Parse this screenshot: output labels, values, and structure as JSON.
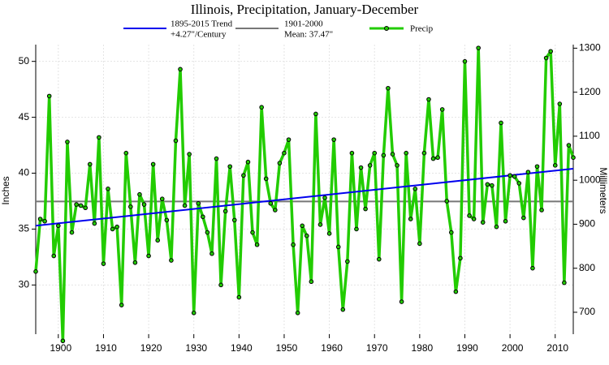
{
  "chart_data": {
    "type": "line",
    "title": "Illinois, Precipitation, January-December",
    "ylabel": "Inches",
    "y2label": "Millimeters",
    "x": [
      1895,
      1896,
      1897,
      1898,
      1899,
      1900,
      1901,
      1902,
      1903,
      1904,
      1905,
      1906,
      1907,
      1908,
      1909,
      1910,
      1911,
      1912,
      1913,
      1914,
      1915,
      1916,
      1917,
      1918,
      1919,
      1920,
      1921,
      1922,
      1923,
      1924,
      1925,
      1926,
      1927,
      1928,
      1929,
      1930,
      1931,
      1932,
      1933,
      1934,
      1935,
      1936,
      1937,
      1938,
      1939,
      1940,
      1941,
      1942,
      1943,
      1944,
      1945,
      1946,
      1947,
      1948,
      1949,
      1950,
      1951,
      1952,
      1953,
      1954,
      1955,
      1956,
      1957,
      1958,
      1959,
      1960,
      1961,
      1962,
      1963,
      1964,
      1965,
      1966,
      1967,
      1968,
      1969,
      1970,
      1971,
      1972,
      1973,
      1974,
      1975,
      1976,
      1977,
      1978,
      1979,
      1980,
      1981,
      1982,
      1983,
      1984,
      1985,
      1986,
      1987,
      1988,
      1989,
      1990,
      1991,
      1992,
      1993,
      1994,
      1995,
      1996,
      1997,
      1998,
      1999,
      2000,
      2001,
      2002,
      2003,
      2004,
      2005,
      2006,
      2007,
      2008,
      2009,
      2010,
      2011,
      2012,
      2013,
      2014
    ],
    "series": [
      {
        "name": "Precip",
        "color": "#22cc00",
        "values": [
          31.2,
          35.9,
          35.7,
          46.9,
          32.6,
          35.3,
          25.0,
          42.8,
          34.7,
          37.2,
          37.1,
          36.9,
          40.8,
          35.5,
          43.2,
          31.9,
          38.6,
          35.0,
          35.2,
          28.2,
          41.8,
          37.0,
          32.0,
          38.1,
          37.2,
          32.6,
          40.8,
          34.0,
          37.7,
          35.8,
          32.2,
          42.9,
          49.3,
          37.1,
          41.7,
          27.5,
          37.3,
          36.1,
          34.7,
          32.8,
          41.3,
          30.0,
          36.6,
          40.6,
          35.8,
          28.9,
          39.8,
          41.0,
          34.7,
          33.6,
          45.9,
          39.5,
          37.3,
          36.7,
          40.9,
          41.8,
          43.0,
          33.6,
          27.5,
          35.3,
          34.4,
          30.3,
          45.3,
          35.4,
          37.8,
          34.6,
          43.0,
          33.4,
          27.8,
          32.1,
          41.8,
          35.0,
          40.5,
          36.8,
          40.7,
          41.8,
          32.3,
          41.6,
          47.6,
          41.7,
          40.7,
          28.5,
          41.8,
          35.9,
          38.6,
          33.7,
          41.8,
          46.6,
          41.3,
          41.4,
          45.7,
          37.5,
          34.7,
          29.4,
          32.4,
          50.0,
          36.2,
          35.9,
          51.2,
          35.6,
          39.0,
          38.9,
          35.2,
          44.5,
          35.7,
          39.8,
          39.7,
          39.1,
          36.0,
          40.1,
          31.5,
          40.6,
          36.7,
          50.3,
          50.9,
          40.7,
          46.2,
          30.2,
          42.5,
          41.4
        ]
      }
    ],
    "trend": {
      "name": "1895-2015 Trend",
      "label": "+4.27\"/Century",
      "color": "#0000ee",
      "x": [
        1895,
        2014
      ],
      "values": [
        35.3,
        40.4
      ]
    },
    "mean": {
      "name": "1901-2000",
      "label": "Mean: 37.47\"",
      "color": "#777777",
      "value": 37.47
    },
    "xlim": [
      1895,
      2014
    ],
    "xticks": [
      1900,
      1910,
      1920,
      1930,
      1940,
      1950,
      1960,
      1970,
      1980,
      1990,
      2000,
      2010
    ],
    "ylim": [
      25.6,
      51.5
    ],
    "yticks": [
      30,
      35,
      40,
      45,
      50
    ],
    "y2lim": [
      650.2,
      1308.1
    ],
    "y2ticks": [
      700,
      800,
      900,
      1000,
      1100,
      1200,
      1300
    ],
    "grid": true
  }
}
